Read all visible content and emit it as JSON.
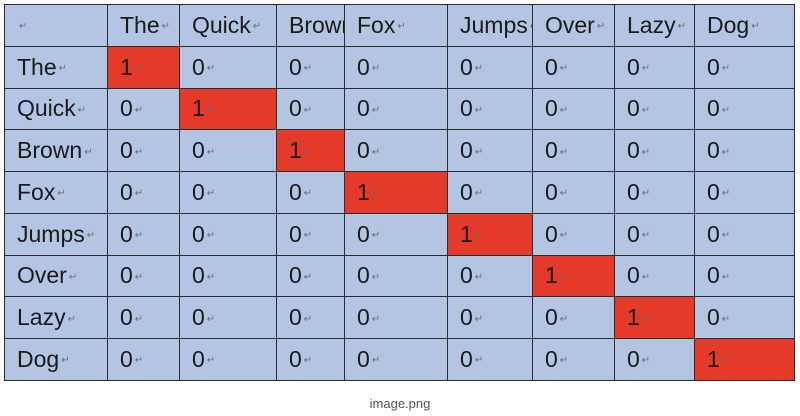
{
  "table": {
    "corner_label": "",
    "columns": [
      "The",
      "Quick",
      "Brown",
      "Fox",
      "Jumps",
      "Over",
      "Lazy",
      "Dog"
    ],
    "rows": [
      {
        "label": "The",
        "cells": [
          "1",
          "0",
          "0",
          "0",
          "0",
          "0",
          "0",
          "0"
        ]
      },
      {
        "label": "Quick",
        "cells": [
          "0",
          "1",
          "0",
          "0",
          "0",
          "0",
          "0",
          "0"
        ]
      },
      {
        "label": "Brown",
        "cells": [
          "0",
          "0",
          "1",
          "0",
          "0",
          "0",
          "0",
          "0"
        ]
      },
      {
        "label": "Fox",
        "cells": [
          "0",
          "0",
          "0",
          "1",
          "0",
          "0",
          "0",
          "0"
        ]
      },
      {
        "label": "Jumps",
        "cells": [
          "0",
          "0",
          "0",
          "0",
          "1",
          "0",
          "0",
          "0"
        ]
      },
      {
        "label": "Over",
        "cells": [
          "0",
          "0",
          "0",
          "0",
          "0",
          "1",
          "0",
          "0"
        ]
      },
      {
        "label": "Lazy",
        "cells": [
          "0",
          "0",
          "0",
          "0",
          "0",
          "0",
          "1",
          "0"
        ]
      },
      {
        "label": "Dog",
        "cells": [
          "0",
          "0",
          "0",
          "0",
          "0",
          "0",
          "0",
          "1"
        ]
      }
    ],
    "paragraph_mark": "↵"
  },
  "colors": {
    "cell_background": "#b4c5e3",
    "highlight": "#e43a2a",
    "border": "#2c2c2c"
  },
  "caption": "image.png"
}
